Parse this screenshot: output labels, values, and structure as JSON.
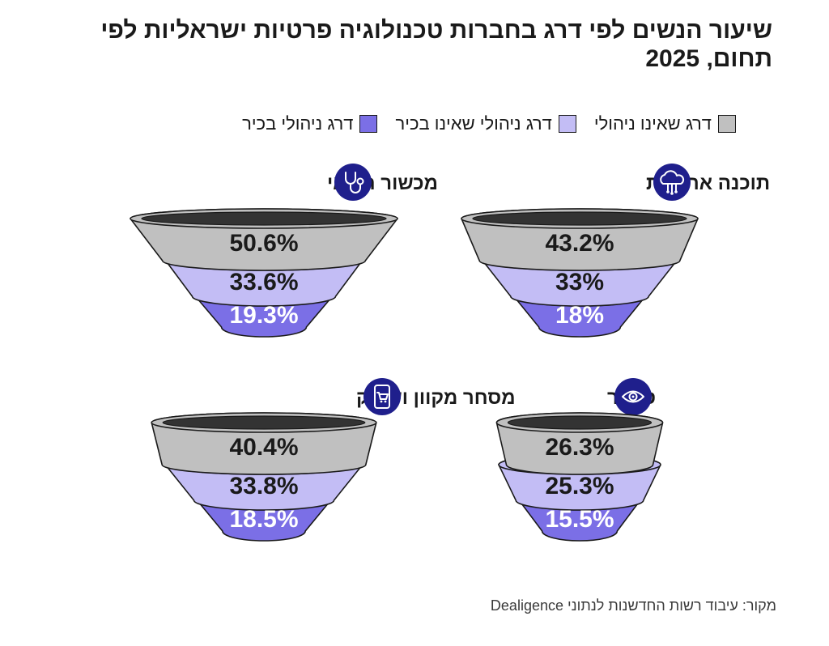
{
  "title": "שיעור הנשים לפי דרג בחברות טכנולוגיה פרטיות ישראליות לפי תחום, 2025",
  "legend": [
    {
      "label": "דרג שאינו ניהולי",
      "color": "#c0c0c0"
    },
    {
      "label": "דרג ניהולי שאינו בכיר",
      "color": "#c3bdf5"
    },
    {
      "label": "דרג ניהולי בכיר",
      "color": "#7b6fe6"
    }
  ],
  "footer": "מקור: עיבוד רשות החדשנות לנתוני Dealigence",
  "colors": {
    "navy": "#1f1f8c",
    "outline": "#1a1a1a",
    "rim_inner": "#333333"
  },
  "chart_data": {
    "type": "funnel",
    "title": "שיעור הנשים לפי דרג בחברות טכנולוגיה פרטיות ישראליות לפי תחום, 2025",
    "levels": [
      "דרג שאינו ניהולי",
      "דרג ניהולי שאינו בכיר",
      "דרג ניהולי בכיר"
    ],
    "unit": "%",
    "panels": [
      {
        "name": "תוכנה ארגונית",
        "icon": "cloud-network-icon",
        "values": [
          43.2,
          33,
          18
        ],
        "labels": [
          "43.2%",
          "33%",
          "18%"
        ]
      },
      {
        "name": "מכשור רפואי",
        "icon": "stethoscope-icon",
        "values": [
          50.6,
          33.6,
          19.3
        ],
        "labels": [
          "50.6%",
          "33.6%",
          "19.3%"
        ]
      },
      {
        "name": "סייבר",
        "icon": "eye-icon",
        "values": [
          26.3,
          25.3,
          15.5
        ],
        "labels": [
          "26.3%",
          "25.3%",
          "15.5%"
        ]
      },
      {
        "name": "מסחר מקוון ושיווק",
        "icon": "shopping-cart-phone-icon",
        "values": [
          40.4,
          33.8,
          18.5
        ],
        "labels": [
          "40.4%",
          "33.8%",
          "18.5%"
        ]
      }
    ]
  }
}
